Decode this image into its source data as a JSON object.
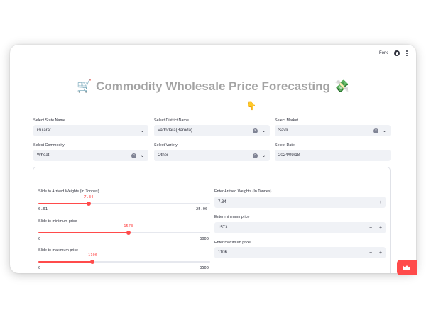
{
  "topbar": {
    "fork_label": "Fork",
    "github_icon": "github-icon",
    "menu_icon": "kebab-menu-icon"
  },
  "header": {
    "title": "Commodity Wholesale Price Forecasting",
    "title_emoji_left": "🛒",
    "title_emoji_right": "💸",
    "pointer_emoji": "👇"
  },
  "filters": {
    "state": {
      "label": "Select State Name",
      "value": "Gujarat"
    },
    "district": {
      "label": "Select District Name",
      "value": "Vadodara(Baroda)"
    },
    "market": {
      "label": "Select Market",
      "value": "Savli"
    },
    "commodity": {
      "label": "Select Commodity",
      "value": "Wheat"
    },
    "variety": {
      "label": "Select Variety",
      "value": "Other"
    },
    "date": {
      "label": "Select Date",
      "value": "2024/09/18"
    }
  },
  "sliders": {
    "arrived": {
      "label": "Slide to Arrived Weights (In Tonnes)",
      "value": "7.34",
      "min": "0.01",
      "max": "25.00",
      "fraction": 0.293
    },
    "min_price": {
      "label": "Slide to minimum price",
      "value": "1573",
      "min": "0",
      "max": "3000",
      "fraction": 0.524
    },
    "max_price": {
      "label": "Slide to maximum price",
      "value": "1106",
      "min": "0",
      "max": "3500",
      "fraction": 0.316
    }
  },
  "inputs": {
    "arrived": {
      "label": "Enter Arrived Weights (In Tonnes)",
      "value": "7.34"
    },
    "min_price": {
      "label": "Enter minimum price",
      "value": "1573"
    },
    "max_price": {
      "label": "Enter maximum price",
      "value": "1106"
    }
  },
  "controls": {
    "minus": "−",
    "plus": "+",
    "clear": "×",
    "chevron": "⌄"
  },
  "colors": {
    "accent": "#ff4b4b",
    "input_bg": "#f0f2f6",
    "title_gray": "#a3a3a3"
  }
}
